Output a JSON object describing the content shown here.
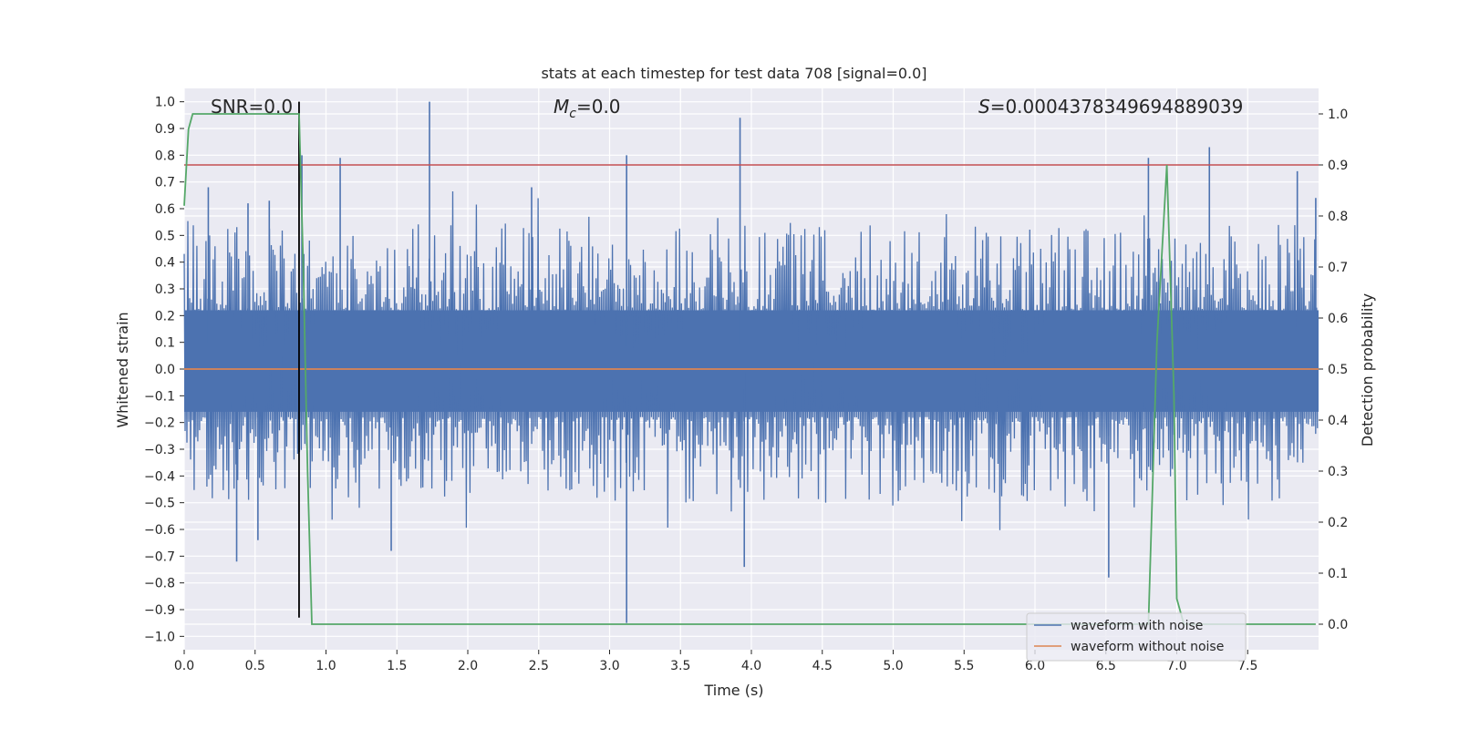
{
  "chart_data": {
    "type": "line",
    "title": "stats at each timestep for test data 708 [signal=0.0]",
    "xlabel": "Time (s)",
    "ylabel": "Whitened strain",
    "ylabel_right": "Detection probability",
    "xlim": [
      0.0,
      8.0
    ],
    "ylim": [
      -1.05,
      1.05
    ],
    "ylim_right": [
      -0.05,
      1.05
    ],
    "x_ticks": [
      "0.0",
      "0.5",
      "1.0",
      "1.5",
      "2.0",
      "2.5",
      "3.0",
      "3.5",
      "4.0",
      "4.5",
      "5.0",
      "5.5",
      "6.0",
      "6.5",
      "7.0",
      "7.5"
    ],
    "x_tick_values": [
      0.0,
      0.5,
      1.0,
      1.5,
      2.0,
      2.5,
      3.0,
      3.5,
      4.0,
      4.5,
      5.0,
      5.5,
      6.0,
      6.5,
      7.0,
      7.5
    ],
    "y_ticks": [
      "1.0",
      "0.9",
      "0.8",
      "0.7",
      "0.6",
      "0.5",
      "0.4",
      "0.3",
      "0.2",
      "0.1",
      "0.0",
      "−0.1",
      "−0.2",
      "−0.3",
      "−0.4",
      "−0.5",
      "−0.6",
      "−0.7",
      "−0.8",
      "−0.9",
      "−1.0"
    ],
    "y_tick_values": [
      1.0,
      0.9,
      0.8,
      0.7,
      0.6,
      0.5,
      0.4,
      0.3,
      0.2,
      0.1,
      0.0,
      -0.1,
      -0.2,
      -0.3,
      -0.4,
      -0.5,
      -0.6,
      -0.7,
      -0.8,
      -0.9,
      -1.0
    ],
    "y_right_ticks": [
      "1.0",
      "0.9",
      "0.8",
      "0.7",
      "0.6",
      "0.5",
      "0.4",
      "0.3",
      "0.2",
      "0.1",
      "0.0"
    ],
    "y_right_tick_values": [
      1.0,
      0.9,
      0.8,
      0.7,
      0.6,
      0.5,
      0.4,
      0.3,
      0.2,
      0.1,
      0.0
    ],
    "annotations": {
      "snr": "SNR=0.0",
      "mc_symbol": "M",
      "mc_sub": "c",
      "mc_value": "=0.0",
      "s_symbol": "S",
      "s_value": "=0.0004378349694889039"
    },
    "series": [
      {
        "name": "waveform with noise",
        "color": "#4c72b0",
        "description_stats": "noise band approx [-0.35, 0.4], spikes to ~1.0",
        "spikes": [
          {
            "x": 0.17,
            "y": 0.68
          },
          {
            "x": 0.37,
            "y": -0.72
          },
          {
            "x": 0.45,
            "y": 0.62
          },
          {
            "x": 0.52,
            "y": -0.64
          },
          {
            "x": 0.6,
            "y": 0.63
          },
          {
            "x": 0.83,
            "y": 0.8
          },
          {
            "x": 1.1,
            "y": 0.79
          },
          {
            "x": 1.46,
            "y": -0.68
          },
          {
            "x": 1.73,
            "y": 1.0
          },
          {
            "x": 2.45,
            "y": 0.68
          },
          {
            "x": 3.12,
            "y": 0.8
          },
          {
            "x": 3.12,
            "y": -0.95
          },
          {
            "x": 3.92,
            "y": 0.94
          },
          {
            "x": 3.95,
            "y": -0.74
          },
          {
            "x": 6.52,
            "y": -0.78
          },
          {
            "x": 6.8,
            "y": 0.79
          },
          {
            "x": 7.23,
            "y": 0.83
          },
          {
            "x": 7.85,
            "y": 0.74
          },
          {
            "x": 7.98,
            "y": 0.64
          }
        ]
      },
      {
        "name": "waveform without noise",
        "color": "#dd8452",
        "x": [
          0.0,
          8.0
        ],
        "y": [
          0.0,
          0.0
        ]
      },
      {
        "name": "detection probability",
        "color": "#55a868",
        "axis": "right",
        "x": [
          0.0,
          0.03,
          0.06,
          0.1,
          0.2,
          0.5,
          0.8,
          0.81,
          0.84,
          0.87,
          0.9,
          3.0,
          6.0,
          6.8,
          6.86,
          6.93,
          6.98,
          7.0,
          7.05,
          7.5,
          7.98
        ],
        "y": [
          0.82,
          0.97,
          1.0,
          1.0,
          1.0,
          1.0,
          1.0,
          1.0,
          0.7,
          0.3,
          0.0,
          0.0,
          0.0,
          0.0,
          0.55,
          0.9,
          0.45,
          0.05,
          0.0,
          0.0,
          0.0
        ]
      }
    ],
    "threshold_line": {
      "y_right": 0.9,
      "color": "#c44e52"
    },
    "event_line": {
      "x": 0.81,
      "y_from": -0.93,
      "y_to": 1.0,
      "color": "#000000"
    },
    "legend": {
      "placement": "bottom-right",
      "entries": [
        {
          "label": "waveform with noise",
          "color": "#4c72b0"
        },
        {
          "label": "waveform without noise",
          "color": "#dd8452"
        }
      ]
    },
    "grid": true,
    "background": "#eaeaf2"
  }
}
